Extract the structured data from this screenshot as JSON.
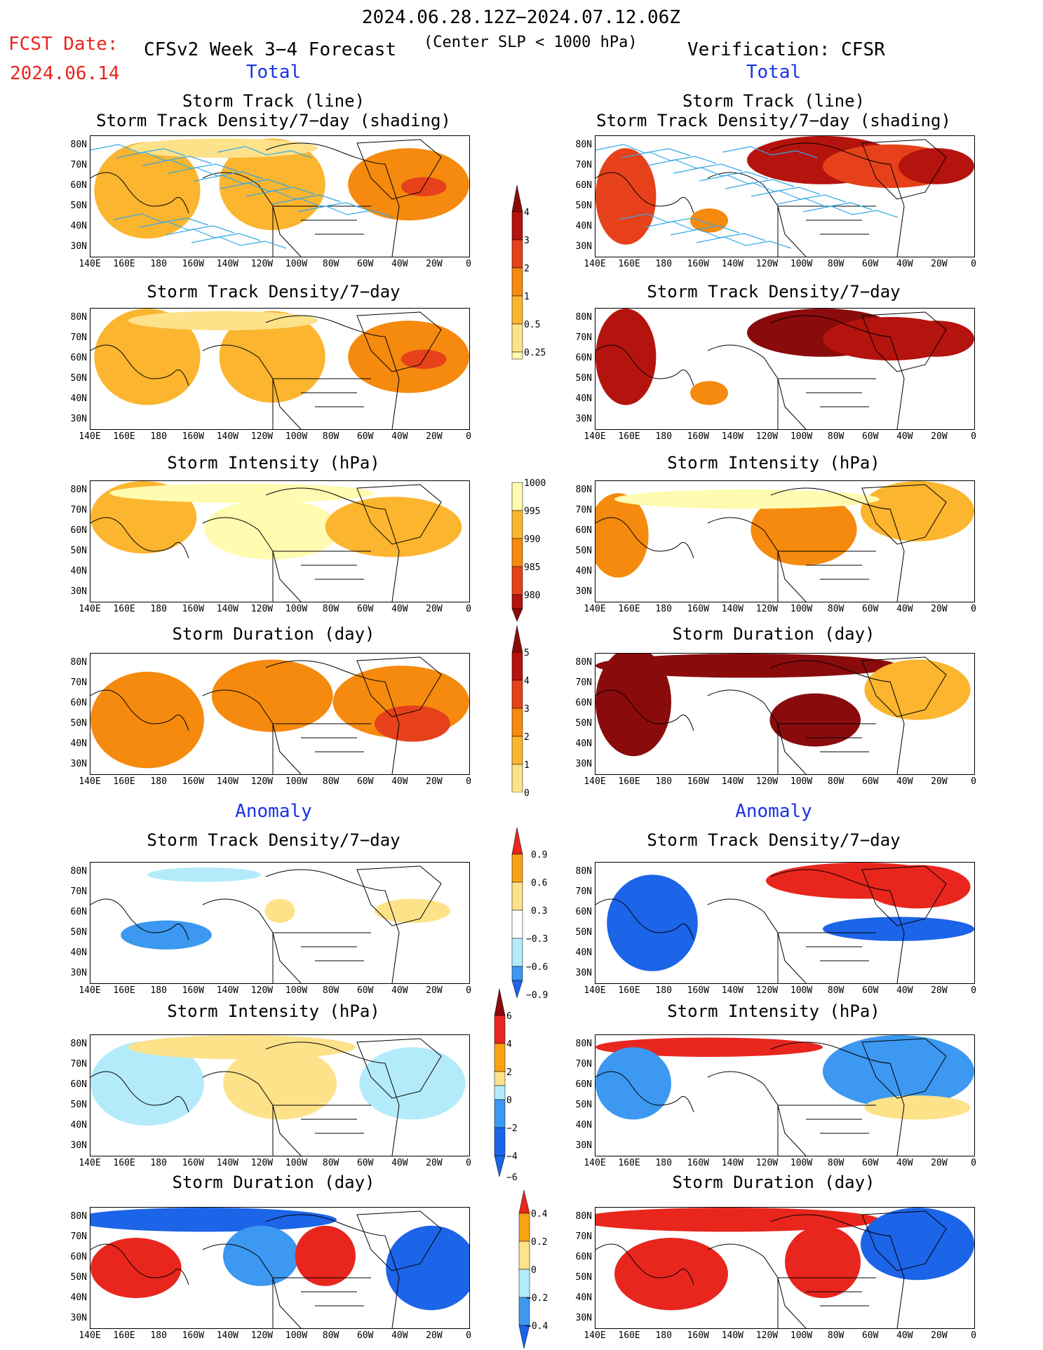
{
  "header": {
    "period": "2024.06.28.12Z−2024.07.12.06Z",
    "fcst_label": "FCST Date:",
    "fcst_date": "2024.06.14",
    "model": "CFSv2 Week 3−4 Forecast",
    "criterion": "(Center SLP < 1000 hPa)",
    "verification": "Verification: CFSR"
  },
  "sections": {
    "total_left": "Total",
    "total_right": "Total",
    "anomaly_left": "Anomaly",
    "anomaly_right": "Anomaly"
  },
  "panel_titles": {
    "track_line": "Storm Track (line)",
    "track_shading": "Storm Track Density/7−day (shading)",
    "density": "Storm Track Density/7−day",
    "intensity": "Storm Intensity (hPa)",
    "duration": "Storm Duration (day)"
  },
  "axes": {
    "lat_labels": [
      "80N",
      "70N",
      "60N",
      "50N",
      "40N",
      "30N"
    ],
    "lon_labels": [
      "140E",
      "160E",
      "180",
      "160W",
      "140W",
      "120W",
      "100W",
      "80W",
      "60W",
      "40W",
      "20W",
      "0"
    ]
  },
  "colorbars": {
    "density_total": {
      "labels": [
        "4",
        "3",
        "2",
        "1",
        "0.5",
        "0.25"
      ]
    },
    "intensity_total": {
      "labels": [
        "1000",
        "995",
        "990",
        "985",
        "980"
      ]
    },
    "duration_total": {
      "labels": [
        "5",
        "4",
        "3",
        "2",
        "1",
        "0"
      ]
    },
    "density_anom": {
      "labels": [
        "0.9",
        "0.6",
        "0.3",
        "−0.3",
        "−0.6",
        "−0.9"
      ]
    },
    "intensity_anom": {
      "labels": [
        "6",
        "4",
        "2",
        "0",
        "−2",
        "−4",
        "−6"
      ]
    },
    "duration_anom": {
      "labels": [
        "0.4",
        "0.2",
        "0",
        "−0.2",
        "−0.4"
      ]
    }
  },
  "palette": {
    "total": [
      "#fffbb0",
      "#fde28a",
      "#fbb52e",
      "#f58a0e",
      "#e6411a",
      "#b5130e",
      "#8a0b0b"
    ],
    "anomaly": [
      "#1c64e8",
      "#3c98f0",
      "#b4ebfa",
      "#ffffff",
      "#fde28a",
      "#f9a314",
      "#e8261e"
    ]
  }
}
